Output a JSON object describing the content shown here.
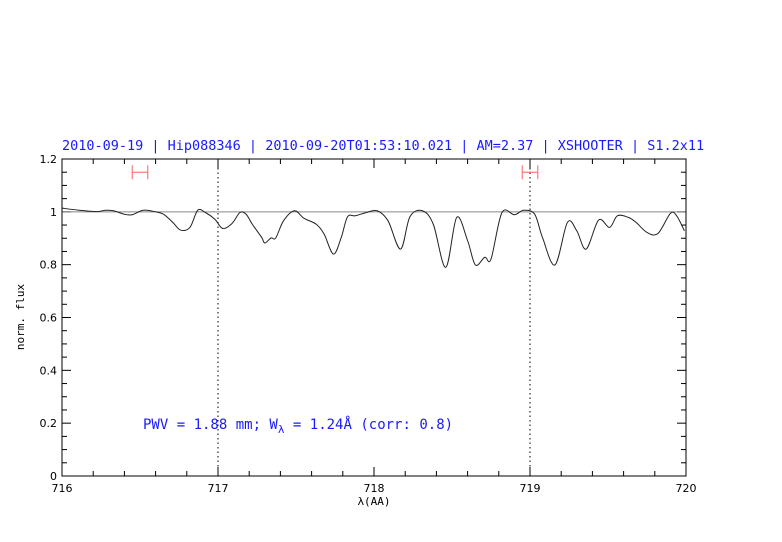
{
  "chart_data": {
    "type": "line",
    "title": "2010-09-19 | Hip088346 | 2010-09-20T01:53:10.021 | AM=2.37 | XSHOOTER | S1.2x11",
    "xlabel": "λ(AA)",
    "ylabel": "norm. flux",
    "xlim": [
      716,
      720
    ],
    "ylim": [
      0,
      1.2
    ],
    "xticks": [
      716,
      717,
      718,
      719,
      720
    ],
    "yticks": [
      0,
      0.2,
      0.4,
      0.6,
      0.8,
      1,
      1.2
    ],
    "ytick_labels": [
      "0",
      "0.2",
      "0.4",
      "0.6",
      "0.8",
      "1",
      "1.2"
    ],
    "grid": false,
    "continuum_level": 1.0,
    "vertical_markers": [
      717,
      719
    ],
    "ranges": [
      [
        716.45,
        716.55
      ],
      [
        718.95,
        719.05
      ]
    ],
    "range_marker_level": 1.15,
    "annotation": {
      "prefix": "PWV = 1.88 mm; W",
      "subscript": "λ",
      "suffix": " = 1.24Å (corr: 0.8)"
    },
    "colors": {
      "spectrum": "#000000",
      "continuum": "#e05050",
      "range": "#ff6060",
      "text": "#1a1aff"
    },
    "series": [
      {
        "x": [
          716.0,
          716.11,
          716.22,
          716.28,
          716.33,
          716.4,
          716.45,
          716.52,
          716.59,
          716.65,
          716.71,
          716.76,
          716.82,
          716.87,
          716.92,
          716.98,
          717.03,
          717.09,
          717.14,
          717.18,
          717.22,
          717.28,
          717.3,
          717.34,
          717.37,
          717.42,
          717.49,
          717.55,
          717.63,
          717.68,
          717.74,
          717.79,
          717.83,
          717.88,
          717.95,
          718.02,
          718.09,
          718.17,
          718.23,
          718.31,
          718.38,
          718.46,
          718.53,
          718.6,
          718.65,
          718.71,
          718.75,
          718.82,
          718.9,
          718.96,
          719.03,
          719.08,
          719.16,
          719.24,
          719.3,
          719.36,
          719.44,
          719.51,
          719.56,
          719.63,
          719.68,
          719.75,
          719.82,
          719.9,
          719.94,
          719.99
        ],
        "y": [
          1.014,
          1.006,
          1.001,
          1.006,
          1.004,
          0.991,
          0.989,
          1.006,
          1.001,
          0.991,
          0.96,
          0.931,
          0.941,
          1.006,
          0.997,
          0.972,
          0.937,
          0.956,
          0.997,
          0.991,
          0.953,
          0.903,
          0.882,
          0.901,
          0.901,
          0.966,
          1.004,
          0.976,
          0.953,
          0.916,
          0.84,
          0.903,
          0.981,
          0.985,
          0.997,
          1.004,
          0.966,
          0.859,
          0.981,
          1.004,
          0.953,
          0.79,
          0.979,
          0.891,
          0.799,
          0.828,
          0.821,
          0.997,
          0.989,
          1.006,
          0.991,
          0.903,
          0.799,
          0.96,
          0.928,
          0.859,
          0.969,
          0.941,
          0.985,
          0.979,
          0.96,
          0.922,
          0.918,
          0.994,
          0.985,
          0.928
        ]
      }
    ]
  }
}
